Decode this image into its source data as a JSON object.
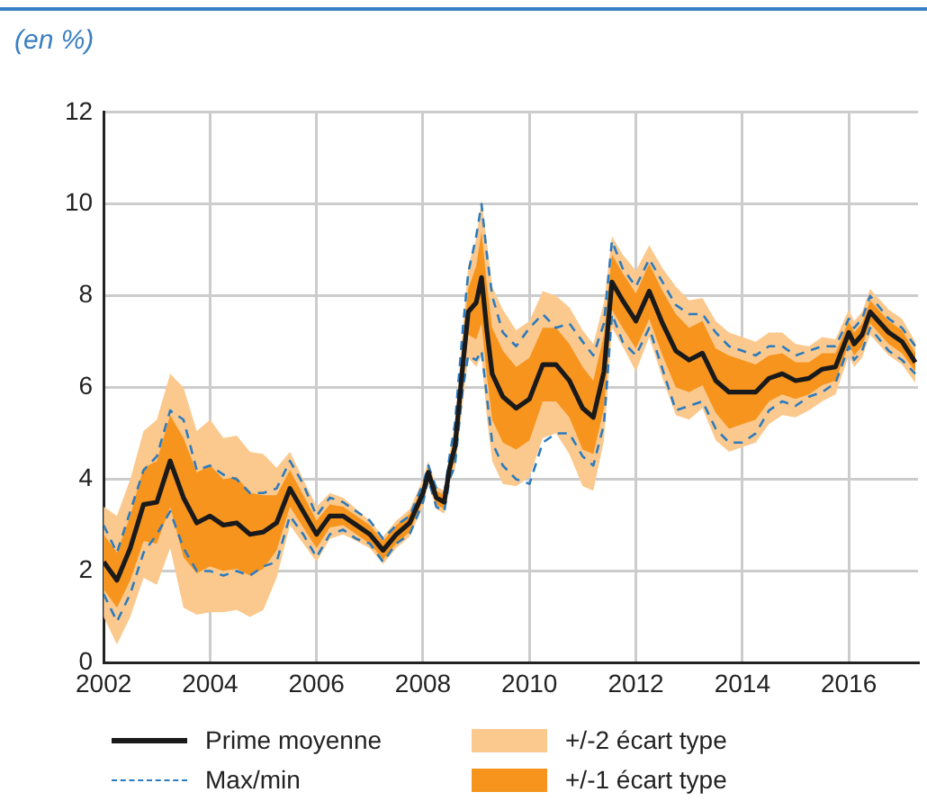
{
  "chart_data": {
    "type": "line",
    "title": "(en %)",
    "x": [
      2002,
      2002.25,
      2002.5,
      2002.75,
      2003,
      2003.25,
      2003.5,
      2003.75,
      2004,
      2004.25,
      2004.5,
      2004.75,
      2005,
      2005.25,
      2005.5,
      2005.75,
      2006,
      2006.25,
      2006.5,
      2006.75,
      2007,
      2007.25,
      2007.5,
      2007.75,
      2008,
      2008.1,
      2008.25,
      2008.4,
      2008.5,
      2008.6,
      2008.75,
      2008.85,
      2009,
      2009.1,
      2009.2,
      2009.3,
      2009.5,
      2009.75,
      2010,
      2010.25,
      2010.5,
      2010.75,
      2011,
      2011.2,
      2011.4,
      2011.55,
      2011.75,
      2012,
      2012.25,
      2012.5,
      2012.75,
      2013,
      2013.25,
      2013.5,
      2013.75,
      2014,
      2014.25,
      2014.5,
      2014.75,
      2015,
      2015.25,
      2015.5,
      2015.75,
      2016,
      2016.1,
      2016.25,
      2016.4,
      2016.75,
      2017,
      2017.25
    ],
    "xlim": [
      2002,
      2017.3
    ],
    "xticks": [
      2002,
      2004,
      2006,
      2008,
      2010,
      2012,
      2014,
      2016
    ],
    "ylim": [
      0,
      12
    ],
    "yticks": [
      0,
      2,
      4,
      6,
      8,
      10,
      12
    ],
    "grid": true,
    "legend": "bottom",
    "marker": "none",
    "series": [
      {
        "name": "Prime moyenne",
        "type": "line",
        "line_style": "solid",
        "color": "#1a1a1a",
        "values": [
          2.2,
          1.8,
          2.5,
          3.45,
          3.5,
          4.4,
          3.6,
          3.05,
          3.2,
          3.0,
          3.05,
          2.8,
          2.85,
          3.05,
          3.8,
          3.3,
          2.8,
          3.2,
          3.2,
          3.0,
          2.8,
          2.45,
          2.8,
          3.05,
          3.7,
          4.15,
          3.6,
          3.5,
          4.25,
          4.7,
          6.5,
          7.65,
          7.85,
          8.4,
          7.25,
          6.3,
          5.8,
          5.55,
          5.75,
          6.5,
          6.5,
          6.15,
          5.55,
          5.35,
          6.35,
          8.3,
          7.9,
          7.45,
          8.1,
          7.4,
          6.8,
          6.6,
          6.75,
          6.15,
          5.9,
          5.9,
          5.9,
          6.2,
          6.3,
          6.15,
          6.2,
          6.4,
          6.45,
          7.2,
          6.95,
          7.15,
          7.65,
          7.2,
          7.0,
          6.55
        ]
      },
      {
        "name": "Max/min",
        "type": "line",
        "line_style": "dashed",
        "color": "#2b7bbf",
        "values": [
          3.0,
          2.4,
          3.3,
          4.2,
          4.5,
          5.5,
          5.3,
          4.2,
          4.3,
          4.1,
          4.0,
          3.7,
          3.7,
          3.8,
          4.4,
          3.9,
          3.2,
          3.6,
          3.5,
          3.3,
          3.1,
          2.7,
          3.0,
          3.2,
          3.9,
          4.3,
          3.8,
          3.7,
          4.5,
          5.2,
          7.3,
          8.5,
          9.3,
          10.0,
          8.9,
          8.0,
          7.2,
          6.9,
          7.3,
          7.6,
          7.3,
          7.4,
          7.0,
          6.7,
          7.4,
          9.2,
          8.6,
          8.2,
          8.8,
          8.3,
          7.8,
          7.6,
          7.6,
          7.2,
          6.9,
          6.8,
          6.7,
          6.9,
          6.9,
          6.7,
          6.8,
          6.9,
          6.9,
          7.5,
          7.3,
          7.5,
          8.0,
          7.5,
          7.3,
          6.9
        ]
      },
      {
        "type": "line",
        "line_style": "dashed",
        "color": "#2b7bbf",
        "values": [
          1.5,
          0.9,
          1.5,
          2.4,
          2.8,
          3.3,
          2.5,
          2.0,
          2.0,
          1.9,
          2.0,
          1.9,
          2.1,
          2.2,
          3.2,
          2.8,
          2.3,
          2.8,
          2.9,
          2.7,
          2.6,
          2.2,
          2.6,
          2.8,
          3.5,
          4.0,
          3.4,
          3.3,
          4.0,
          4.3,
          6.0,
          6.7,
          6.6,
          6.8,
          5.8,
          4.8,
          4.3,
          4.0,
          3.9,
          4.8,
          5.0,
          5.0,
          4.5,
          4.3,
          5.2,
          7.6,
          7.0,
          6.7,
          7.3,
          6.4,
          5.5,
          5.6,
          5.7,
          5.1,
          4.8,
          4.8,
          5.0,
          5.5,
          5.7,
          5.6,
          5.8,
          5.9,
          6.1,
          6.9,
          6.6,
          6.8,
          7.3,
          6.8,
          6.6,
          6.3
        ]
      },
      {
        "name": "+/-2 écart type",
        "type": "area",
        "color": "#fbc98e",
        "values": [
          null,
          null,
          null,
          null,
          null,
          null,
          null,
          null,
          null,
          null,
          null,
          null,
          null,
          null,
          null,
          null,
          null,
          null,
          null,
          null,
          null,
          null,
          null,
          null,
          null,
          null,
          null,
          null,
          null,
          null,
          null,
          null,
          null,
          null,
          null,
          null,
          null,
          null,
          null,
          null,
          null,
          null,
          null,
          null,
          null,
          null,
          null,
          null,
          null,
          null,
          null,
          null,
          null,
          null,
          null,
          null,
          null,
          null,
          null,
          null,
          null,
          null,
          null,
          null,
          null,
          null,
          null,
          null,
          null,
          null
        ],
        "lower": [
          1.0,
          0.4,
          1.0,
          1.85,
          1.7,
          2.5,
          1.2,
          1.05,
          1.1,
          1.1,
          1.15,
          1.0,
          1.15,
          1.85,
          3.0,
          2.6,
          2.2,
          2.7,
          2.8,
          2.65,
          2.5,
          2.15,
          2.5,
          2.75,
          3.4,
          3.9,
          3.35,
          3.25,
          3.95,
          4.2,
          5.7,
          6.65,
          6.45,
          6.7,
          5.35,
          4.4,
          3.9,
          3.85,
          4.05,
          4.9,
          5.0,
          4.55,
          3.85,
          3.75,
          4.85,
          7.3,
          6.9,
          6.35,
          7.1,
          6.2,
          5.4,
          5.3,
          5.55,
          4.85,
          4.6,
          4.7,
          4.8,
          5.2,
          5.4,
          5.35,
          5.5,
          5.7,
          5.85,
          6.7,
          6.45,
          6.65,
          7.15,
          6.7,
          6.5,
          6.1
        ],
        "upper": [
          3.4,
          3.2,
          4.0,
          5.05,
          5.3,
          6.3,
          6.0,
          5.05,
          5.3,
          4.9,
          4.95,
          4.6,
          4.55,
          4.25,
          4.6,
          4.0,
          3.4,
          3.7,
          3.6,
          3.35,
          3.1,
          2.75,
          3.1,
          3.35,
          4.0,
          4.4,
          3.85,
          3.75,
          4.55,
          5.2,
          7.3,
          8.65,
          9.25,
          10.1,
          9.15,
          8.2,
          7.7,
          7.25,
          7.45,
          8.1,
          8.0,
          7.75,
          7.25,
          6.95,
          7.85,
          9.3,
          8.9,
          8.55,
          9.1,
          8.6,
          8.2,
          7.9,
          7.95,
          7.45,
          7.2,
          7.1,
          7.0,
          7.2,
          7.2,
          6.95,
          6.9,
          7.1,
          7.05,
          7.7,
          7.45,
          7.65,
          8.15,
          7.7,
          7.5,
          7.0
        ]
      },
      {
        "name": "+/-1 écart type",
        "type": "area",
        "color": "#f7941d",
        "values": [
          null,
          null,
          null,
          null,
          null,
          null,
          null,
          null,
          null,
          null,
          null,
          null,
          null,
          null,
          null,
          null,
          null,
          null,
          null,
          null,
          null,
          null,
          null,
          null,
          null,
          null,
          null,
          null,
          null,
          null,
          null,
          null,
          null,
          null,
          null,
          null,
          null,
          null,
          null,
          null,
          null,
          null,
          null,
          null,
          null,
          null,
          null,
          null,
          null,
          null,
          null,
          null,
          null,
          null,
          null,
          null,
          null,
          null,
          null,
          null,
          null,
          null,
          null,
          null,
          null,
          null,
          null,
          null,
          null,
          null
        ],
        "lower": [
          1.6,
          1.2,
          1.8,
          2.65,
          2.6,
          3.4,
          2.3,
          1.95,
          2.1,
          2.0,
          2.05,
          1.9,
          2.05,
          2.45,
          3.4,
          2.95,
          2.5,
          2.95,
          3.0,
          2.8,
          2.6,
          2.25,
          2.6,
          2.85,
          3.55,
          4.0,
          3.45,
          3.35,
          4.05,
          4.4,
          6.0,
          7.15,
          7.05,
          7.4,
          6.25,
          5.3,
          4.8,
          4.65,
          4.85,
          5.7,
          5.7,
          5.35,
          4.65,
          4.55,
          5.55,
          7.7,
          7.3,
          6.85,
          7.5,
          6.7,
          6.0,
          5.9,
          6.05,
          5.45,
          5.1,
          5.2,
          5.3,
          5.7,
          5.85,
          5.75,
          5.85,
          6.05,
          6.15,
          6.95,
          6.7,
          6.9,
          7.4,
          6.95,
          6.75,
          6.35
        ],
        "upper": [
          2.8,
          2.4,
          3.2,
          4.25,
          4.4,
          5.4,
          4.9,
          4.15,
          4.3,
          4.0,
          4.05,
          3.7,
          3.65,
          3.65,
          4.2,
          3.65,
          3.1,
          3.45,
          3.4,
          3.2,
          3.0,
          2.65,
          3.0,
          3.25,
          3.85,
          4.3,
          3.75,
          3.65,
          4.45,
          5.0,
          7.0,
          8.15,
          8.65,
          9.4,
          8.25,
          7.3,
          6.8,
          6.45,
          6.65,
          7.3,
          7.3,
          6.95,
          6.45,
          6.15,
          7.15,
          8.9,
          8.5,
          8.05,
          8.7,
          8.1,
          7.6,
          7.3,
          7.45,
          6.85,
          6.7,
          6.6,
          6.5,
          6.7,
          6.75,
          6.55,
          6.55,
          6.75,
          6.75,
          7.45,
          7.2,
          7.4,
          7.9,
          7.45,
          7.25,
          6.75
        ]
      }
    ]
  }
}
